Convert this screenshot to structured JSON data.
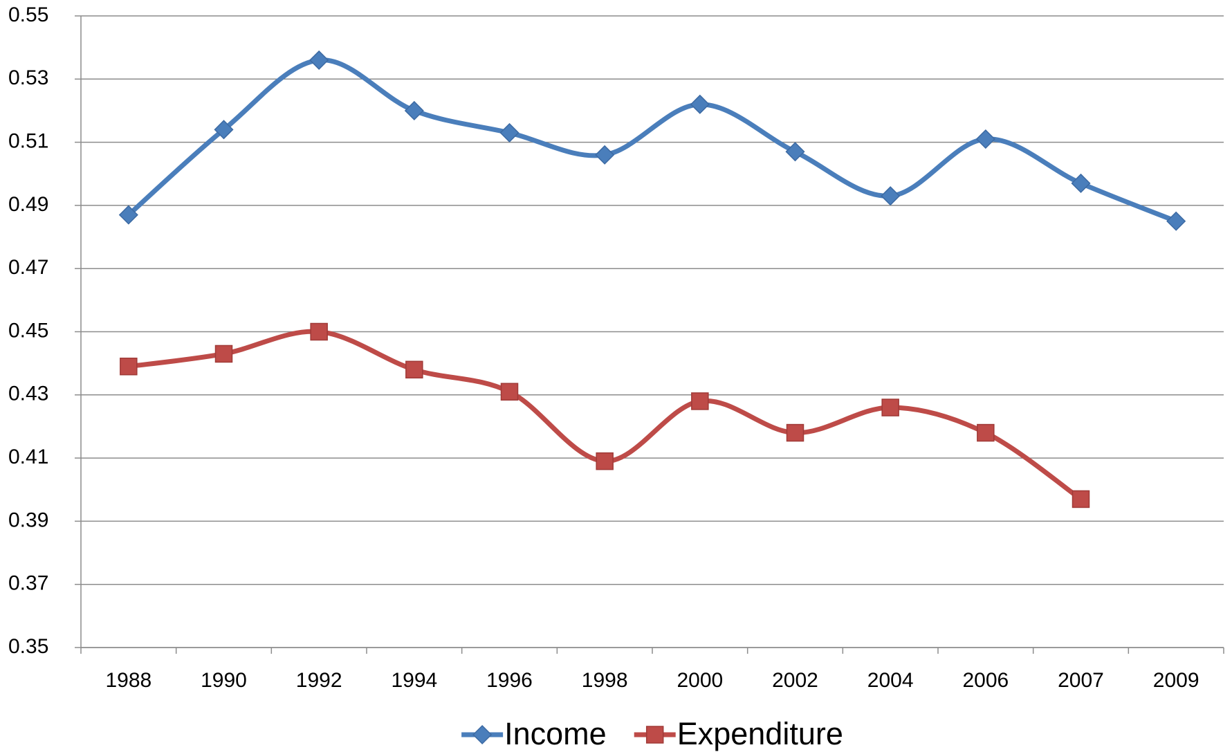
{
  "chart_data": {
    "type": "line",
    "smooth": true,
    "categories": [
      "1988",
      "1990",
      "1992",
      "1994",
      "1996",
      "1998",
      "2000",
      "2002",
      "2004",
      "2006",
      "2007",
      "2009"
    ],
    "series": [
      {
        "name": "Income",
        "color": "#4a7ebb",
        "marker": "diamond",
        "values": [
          0.487,
          0.514,
          0.536,
          0.52,
          0.513,
          0.506,
          0.522,
          0.507,
          0.493,
          0.511,
          0.497,
          0.485
        ]
      },
      {
        "name": "Expenditure",
        "color": "#be4b48",
        "marker": "square",
        "values": [
          0.439,
          0.443,
          0.45,
          0.438,
          0.431,
          0.409,
          0.428,
          0.418,
          0.426,
          0.418,
          0.397,
          null
        ]
      }
    ],
    "ylim": [
      0.35,
      0.55
    ],
    "yticks": [
      0.35,
      0.37,
      0.39,
      0.41,
      0.43,
      0.45,
      0.47,
      0.49,
      0.51,
      0.53,
      0.55
    ],
    "grid": true,
    "legend": "bottom"
  }
}
